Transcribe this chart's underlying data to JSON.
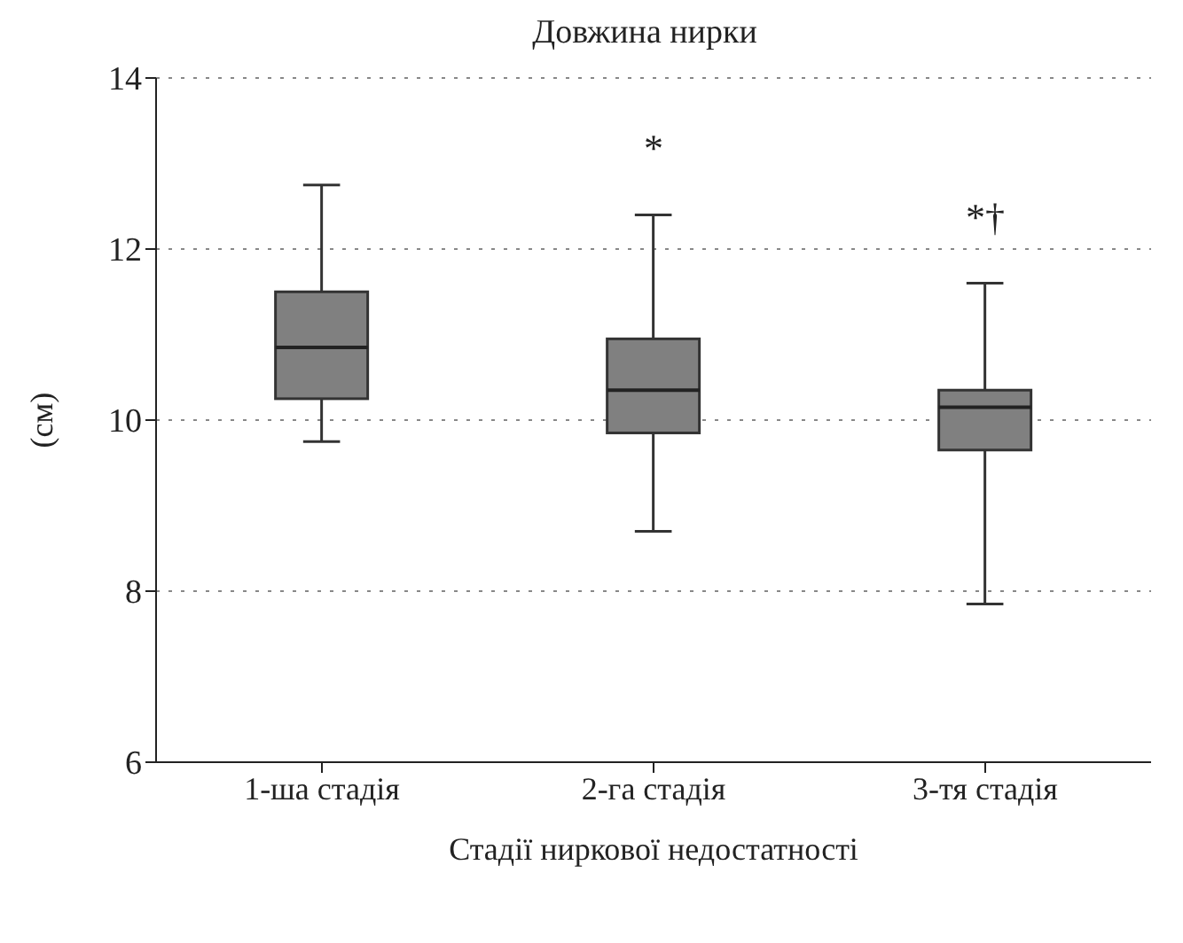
{
  "chart_data": {
    "type": "box",
    "title": "Довжина нирки",
    "xlabel": "Стадії ниркової недостатності",
    "ylabel": "(см)",
    "categories": [
      "1-ша стадія",
      "2-га  стадія",
      "3-тя стадія"
    ],
    "boxes": [
      {
        "low": 9.75,
        "q1": 10.25,
        "median": 10.85,
        "q3": 11.5,
        "high": 12.75
      },
      {
        "low": 8.7,
        "q1": 9.85,
        "median": 10.35,
        "q3": 10.95,
        "high": 12.4
      },
      {
        "low": 7.85,
        "q1": 9.65,
        "median": 10.15,
        "q3": 10.35,
        "high": 11.6
      }
    ],
    "color": "#808080",
    "ylim": [
      6,
      14
    ],
    "yticks": [
      6,
      8,
      10,
      12,
      14
    ],
    "grid": "y",
    "line_style": "dotted",
    "annotations": [
      "*",
      "*†"
    ]
  }
}
